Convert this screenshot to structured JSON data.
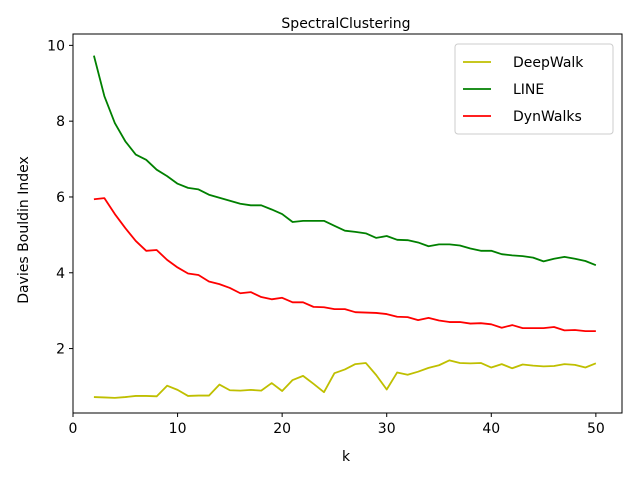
{
  "chart_data": {
    "type": "line",
    "title": "SpectralClustering",
    "xlabel": "k",
    "ylabel": "Davies Bouldin Index",
    "xlim": [
      0,
      52.5
    ],
    "ylim": [
      0.3,
      10.3
    ],
    "xticks": [
      0,
      10,
      20,
      30,
      40,
      50
    ],
    "yticks": [
      2,
      4,
      6,
      8,
      10
    ],
    "grid": false,
    "legend_position": "top-right",
    "x": [
      2,
      3,
      4,
      5,
      6,
      7,
      8,
      9,
      10,
      11,
      12,
      13,
      14,
      15,
      16,
      17,
      18,
      19,
      20,
      21,
      22,
      23,
      24,
      25,
      26,
      27,
      28,
      29,
      30,
      31,
      32,
      33,
      34,
      35,
      36,
      37,
      38,
      39,
      40,
      41,
      42,
      43,
      44,
      45,
      46,
      47,
      48,
      49,
      50
    ],
    "series": [
      {
        "name": "DeepWalk",
        "color": "#bfbf00",
        "values": [
          0.72,
          0.71,
          0.7,
          0.72,
          0.75,
          0.75,
          0.74,
          1.02,
          0.91,
          0.75,
          0.76,
          0.76,
          1.05,
          0.9,
          0.89,
          0.91,
          0.89,
          1.09,
          0.88,
          1.17,
          1.28,
          1.07,
          0.85,
          1.35,
          1.45,
          1.59,
          1.62,
          1.3,
          0.92,
          1.37,
          1.31,
          1.39,
          1.49,
          1.56,
          1.69,
          1.62,
          1.61,
          1.62,
          1.5,
          1.59,
          1.48,
          1.58,
          1.55,
          1.53,
          1.54,
          1.59,
          1.57,
          1.5,
          1.61
        ]
      },
      {
        "name": "LINE",
        "color": "#008000",
        "values": [
          9.73,
          8.66,
          7.95,
          7.47,
          7.12,
          6.98,
          6.72,
          6.55,
          6.35,
          6.24,
          6.2,
          6.06,
          5.98,
          5.9,
          5.82,
          5.78,
          5.78,
          5.67,
          5.55,
          5.34,
          5.37,
          5.37,
          5.37,
          5.24,
          5.11,
          5.08,
          5.04,
          4.92,
          4.97,
          4.87,
          4.86,
          4.8,
          4.7,
          4.75,
          4.75,
          4.72,
          4.64,
          4.58,
          4.58,
          4.49,
          4.46,
          4.44,
          4.4,
          4.3,
          4.37,
          4.42,
          4.37,
          4.31,
          4.2
        ]
      },
      {
        "name": "DynWalks",
        "color": "#ff0000",
        "values": [
          5.94,
          5.97,
          5.55,
          5.18,
          4.84,
          4.58,
          4.6,
          4.34,
          4.14,
          3.98,
          3.94,
          3.77,
          3.7,
          3.6,
          3.46,
          3.49,
          3.36,
          3.3,
          3.34,
          3.22,
          3.22,
          3.1,
          3.09,
          3.04,
          3.04,
          2.96,
          2.95,
          2.94,
          2.91,
          2.84,
          2.83,
          2.75,
          2.81,
          2.74,
          2.7,
          2.7,
          2.66,
          2.67,
          2.64,
          2.55,
          2.62,
          2.54,
          2.54,
          2.54,
          2.57,
          2.48,
          2.49,
          2.46,
          2.46
        ]
      }
    ]
  }
}
